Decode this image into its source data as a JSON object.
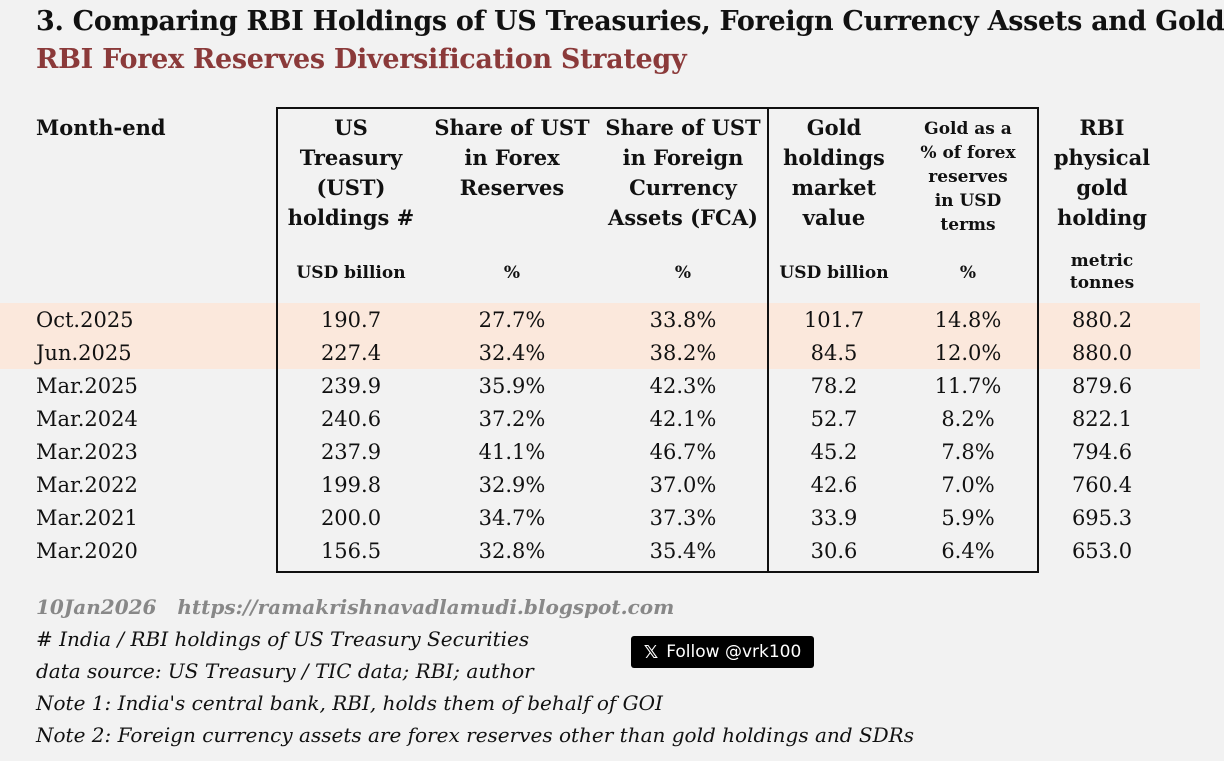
{
  "title": "3. Comparing RBI Holdings of US Treasuries, Foreign Currency Assets and Gold",
  "subtitle": "RBI Forex Reserves Diversification Strategy",
  "columns": [
    {
      "header": [
        "Month-end"
      ],
      "unit": [
        ""
      ]
    },
    {
      "header": [
        "US",
        "Treasury",
        "(UST)",
        "holdings #"
      ],
      "unit": [
        "USD billion"
      ]
    },
    {
      "header": [
        "Share of UST",
        "in Forex",
        "Reserves"
      ],
      "unit": [
        "%"
      ]
    },
    {
      "header": [
        "Share of UST",
        "in Foreign",
        "Currency",
        "Assets (FCA)"
      ],
      "unit": [
        "%"
      ]
    },
    {
      "header": [
        "Gold",
        "holdings",
        "market",
        "value"
      ],
      "unit": [
        "USD billion"
      ]
    },
    {
      "header": [
        "Gold as a",
        "% of forex",
        "reserves",
        "in USD",
        "terms"
      ],
      "unit": [
        "%"
      ]
    },
    {
      "header": [
        "RBI",
        "physical",
        "gold",
        "holding"
      ],
      "unit": [
        "metric",
        "tonnes"
      ]
    }
  ],
  "rows": [
    [
      "Oct.2025",
      "190.7",
      "27.7%",
      "33.8%",
      "101.7",
      "14.8%",
      "880.2"
    ],
    [
      "Jun.2025",
      "227.4",
      "32.4%",
      "38.2%",
      "84.5",
      "12.0%",
      "880.0"
    ],
    [
      "Mar.2025",
      "239.9",
      "35.9%",
      "42.3%",
      "78.2",
      "11.7%",
      "879.6"
    ],
    [
      "Mar.2024",
      "240.6",
      "37.2%",
      "42.1%",
      "52.7",
      "8.2%",
      "822.1"
    ],
    [
      "Mar.2023",
      "237.9",
      "41.1%",
      "46.7%",
      "45.2",
      "7.8%",
      "794.6"
    ],
    [
      "Mar.2022",
      "199.8",
      "32.9%",
      "37.0%",
      "42.6",
      "7.0%",
      "760.4"
    ],
    [
      "Mar.2021",
      "200.0",
      "34.7%",
      "37.3%",
      "33.9",
      "5.9%",
      "695.3"
    ],
    [
      "Mar.2020",
      "156.5",
      "32.8%",
      "35.4%",
      "30.6",
      "6.4%",
      "653.0"
    ]
  ],
  "highlight_color": "#fbe8dc",
  "footer": {
    "date": "10Jan2026",
    "url": "https://ramakrishnavadlamudi.blogspot.com",
    "note_hash": "# India / RBI holdings of US Treasury Securities",
    "source": "data source: US Treasury / TIC data; RBI; author",
    "note1": "Note 1: India's central bank, RBI, holds them of behalf of GOI",
    "note2": "Note 2: Foreign currency assets are forex reserves other than gold holdings and SDRs"
  },
  "follow_button": {
    "icon": "x-logo-icon",
    "label": "Follow @vrk100"
  }
}
